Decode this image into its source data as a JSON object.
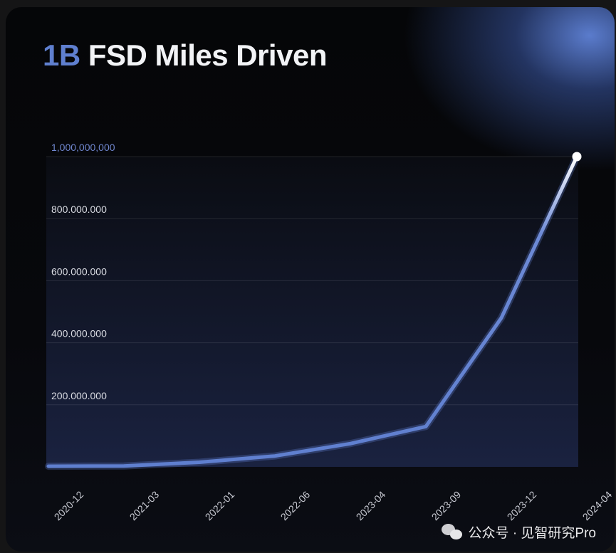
{
  "title": {
    "accent": "1B",
    "text": "FSD Miles Driven"
  },
  "watermark": {
    "text": "公众号 · 见智研究Pro",
    "icon": "wechat-icon"
  },
  "colors": {
    "line": "#5f7fcf",
    "accent": "#5f7fcf",
    "endpoint": "#ffffff"
  },
  "chart_data": {
    "type": "area",
    "title": "1B FSD Miles Driven",
    "y_tick_labels": [
      "1,000,000,000",
      "800.000.000",
      "600.000.000",
      "400.000.000",
      "200.000.000"
    ],
    "y_tick_values": [
      1000000000,
      800000000,
      600000000,
      400000000,
      200000000
    ],
    "x_tick_labels": [
      "2020-12",
      "2021-03",
      "2022-01",
      "2022-06",
      "2023-04",
      "2023-09",
      "2023-12",
      "2024-04"
    ],
    "ylim": [
      0,
      1000000000
    ],
    "grid": true,
    "series": [
      {
        "x": [
          "2020-12",
          "2021-03",
          "2022-01",
          "2022-06",
          "2023-04",
          "2023-09",
          "2023-12",
          "2024-04"
        ],
        "y": [
          2000000,
          3000000,
          15000000,
          35000000,
          75000000,
          130000000,
          480000000,
          1000000000
        ]
      }
    ]
  }
}
